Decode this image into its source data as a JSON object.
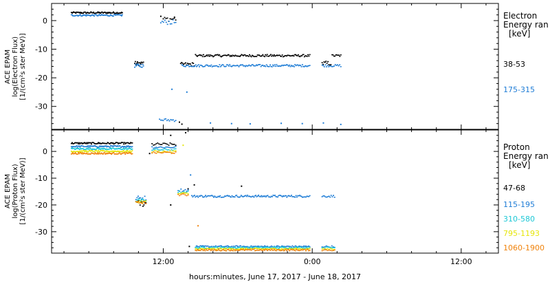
{
  "chart_data": [
    {
      "type": "scatter",
      "panel": "electron",
      "ylabel": [
        "ACE EPAM",
        "log(Electron Flux)",
        "[1/(cm²s ster MeV)]"
      ],
      "ylim": [
        -38,
        6
      ],
      "yticks": [
        0,
        -10,
        -20,
        -30
      ],
      "legend_title": [
        "Electron",
        "Energy ran",
        "[keV]"
      ],
      "series": [
        {
          "name": "38-53",
          "color": "#000000",
          "segments": [
            {
              "x0": 4.6,
              "x1": 8.7,
              "y": 2.7,
              "jitter": 0.3,
              "n": 70
            },
            {
              "x0": 12.0,
              "x1": 13.0,
              "y": 0.5,
              "jitter": 0.8,
              "n": 10
            },
            {
              "x0": 9.7,
              "x1": 10.4,
              "y": -15.0,
              "jitter": 0.7,
              "n": 14
            },
            {
              "x0": 14.6,
              "x1": 23.8,
              "y": -12.3,
              "jitter": 0.4,
              "n": 130
            },
            {
              "x0": 13.4,
              "x1": 14.5,
              "y": -15.3,
              "jitter": 0.6,
              "n": 15
            },
            {
              "x0": 24.8,
              "x1": 25.5,
              "y": -15.0,
              "jitter": 0.8,
              "n": 10
            },
            {
              "x0": 25.6,
              "x1": 26.3,
              "y": -12.3,
              "jitter": 0.4,
              "n": 10
            }
          ],
          "points": [
            [
              11.8,
              1.5
            ],
            [
              12.9,
              1.2
            ],
            [
              13.5,
              -36.2
            ],
            [
              13.3,
              -35.5
            ]
          ]
        },
        {
          "name": "175-315",
          "color": "#1f7dd6",
          "segments": [
            {
              "x0": 4.6,
              "x1": 8.7,
              "y": 1.8,
              "jitter": 0.3,
              "n": 70
            },
            {
              "x0": 11.8,
              "x1": 13.0,
              "y": -0.6,
              "jitter": 0.8,
              "n": 12
            },
            {
              "x0": 9.7,
              "x1": 10.4,
              "y": -15.8,
              "jitter": 0.6,
              "n": 14
            },
            {
              "x0": 13.5,
              "x1": 23.8,
              "y": -15.8,
              "jitter": 0.4,
              "n": 140
            },
            {
              "x0": 24.8,
              "x1": 26.3,
              "y": -15.8,
              "jitter": 0.4,
              "n": 18
            },
            {
              "x0": 11.7,
              "x1": 13.0,
              "y": -34.8,
              "jitter": 0.5,
              "n": 14
            }
          ],
          "points": [
            [
              12.7,
              -24.0
            ],
            [
              13.9,
              -25.0
            ],
            [
              15.8,
              -35.8
            ],
            [
              17.5,
              -36.0
            ],
            [
              19.0,
              -36.1
            ],
            [
              21.5,
              -35.9
            ],
            [
              23.2,
              -36.0
            ],
            [
              24.9,
              -35.8
            ],
            [
              26.3,
              -36.3
            ]
          ]
        }
      ]
    },
    {
      "type": "scatter",
      "panel": "proton",
      "ylabel": [
        "ACE EPAM",
        "log(Proton Flux)",
        "[1/(cm²s ster MeV)]"
      ],
      "ylim": [
        -38,
        8
      ],
      "yticks": [
        0,
        -10,
        -20,
        -30
      ],
      "legend_title": [
        "Proton",
        "Energy ran",
        "[keV]"
      ],
      "series": [
        {
          "name": "47-68",
          "color": "#000000",
          "segments": [
            {
              "x0": 4.6,
              "x1": 9.5,
              "y": 3.0,
              "jitter": 0.3,
              "n": 80
            },
            {
              "x0": 11.1,
              "x1": 13.0,
              "y": 2.6,
              "jitter": 0.5,
              "n": 18
            },
            {
              "x0": 9.9,
              "x1": 10.6,
              "y": -19.5,
              "jitter": 1.2,
              "n": 10
            }
          ],
          "points": [
            [
              10.9,
              -0.8
            ],
            [
              12.6,
              6.0
            ],
            [
              13.8,
              7.0
            ],
            [
              12.6,
              -20.0
            ],
            [
              14.0,
              -14.0
            ],
            [
              14.5,
              -12.5
            ],
            [
              18.3,
              -13.0
            ],
            [
              14.1,
              -35.5
            ]
          ]
        },
        {
          "name": "115-195",
          "color": "#1f7dd6",
          "segments": [
            {
              "x0": 4.6,
              "x1": 9.5,
              "y": 1.8,
              "jitter": 0.3,
              "n": 80
            },
            {
              "x0": 11.1,
              "x1": 13.0,
              "y": 1.5,
              "jitter": 0.4,
              "n": 18
            },
            {
              "x0": 9.8,
              "x1": 10.6,
              "y": -17.5,
              "jitter": 0.8,
              "n": 10
            },
            {
              "x0": 13.2,
              "x1": 14.0,
              "y": -14.5,
              "jitter": 0.5,
              "n": 8
            },
            {
              "x0": 14.3,
              "x1": 23.8,
              "y": -16.8,
              "jitter": 0.4,
              "n": 130
            },
            {
              "x0": 24.8,
              "x1": 25.8,
              "y": -16.8,
              "jitter": 0.4,
              "n": 12
            },
            {
              "x0": 14.6,
              "x1": 23.8,
              "y": -35.6,
              "jitter": 0.3,
              "n": 120
            },
            {
              "x0": 24.8,
              "x1": 25.8,
              "y": -35.6,
              "jitter": 0.3,
              "n": 10
            }
          ],
          "points": [
            [
              14.2,
              -8.8
            ]
          ]
        },
        {
          "name": "310-580",
          "color": "#1ec8d6",
          "segments": [
            {
              "x0": 4.6,
              "x1": 9.5,
              "y": 0.9,
              "jitter": 0.3,
              "n": 80
            },
            {
              "x0": 11.1,
              "x1": 13.0,
              "y": 0.6,
              "jitter": 0.4,
              "n": 18
            },
            {
              "x0": 9.8,
              "x1": 10.6,
              "y": -18.3,
              "jitter": 0.5,
              "n": 10
            },
            {
              "x0": 13.2,
              "x1": 14.0,
              "y": -15.2,
              "jitter": 0.4,
              "n": 8
            },
            {
              "x0": 14.6,
              "x1": 23.8,
              "y": -36.0,
              "jitter": 0.3,
              "n": 120
            },
            {
              "x0": 24.8,
              "x1": 25.8,
              "y": -36.0,
              "jitter": 0.3,
              "n": 10
            }
          ],
          "points": []
        },
        {
          "name": "795-1193",
          "color": "#e6e60a",
          "segments": [
            {
              "x0": 4.6,
              "x1": 9.5,
              "y": 0.0,
              "jitter": 0.3,
              "n": 80
            },
            {
              "x0": 11.1,
              "x1": 13.0,
              "y": -0.1,
              "jitter": 0.4,
              "n": 18
            },
            {
              "x0": 9.8,
              "x1": 10.6,
              "y": -18.8,
              "jitter": 0.4,
              "n": 10
            },
            {
              "x0": 13.2,
              "x1": 14.0,
              "y": -15.8,
              "jitter": 0.4,
              "n": 8
            },
            {
              "x0": 14.6,
              "x1": 23.8,
              "y": -36.5,
              "jitter": 0.3,
              "n": 120
            },
            {
              "x0": 24.8,
              "x1": 25.8,
              "y": -36.5,
              "jitter": 0.3,
              "n": 10
            }
          ],
          "points": [
            [
              13.6,
              2.3
            ]
          ]
        },
        {
          "name": "1060-1900",
          "color": "#f0820a",
          "segments": [
            {
              "x0": 4.6,
              "x1": 9.5,
              "y": -0.8,
              "jitter": 0.3,
              "n": 80
            },
            {
              "x0": 11.1,
              "x1": 13.0,
              "y": -0.5,
              "jitter": 0.4,
              "n": 18
            },
            {
              "x0": 9.8,
              "x1": 10.6,
              "y": -19.2,
              "jitter": 0.4,
              "n": 10
            },
            {
              "x0": 13.2,
              "x1": 14.0,
              "y": -16.3,
              "jitter": 0.4,
              "n": 8
            },
            {
              "x0": 14.6,
              "x1": 23.8,
              "y": -36.9,
              "jitter": 0.3,
              "n": 120
            },
            {
              "x0": 24.8,
              "x1": 25.8,
              "y": -36.9,
              "jitter": 0.3,
              "n": 10
            }
          ],
          "points": [
            [
              14.8,
              -27.8
            ]
          ]
        }
      ]
    }
  ],
  "x_axis": {
    "title": "hours:minutes, June 17, 2017 - June 18, 2017",
    "xlim": [
      3.0,
      39.0
    ],
    "ticks": [
      {
        "x": 12,
        "label": "12:00"
      },
      {
        "x": 24,
        "label": "0:00"
      },
      {
        "x": 36,
        "label": "12:00"
      }
    ],
    "minor_step": 2
  }
}
